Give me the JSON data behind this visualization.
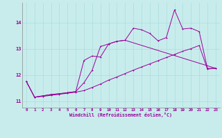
{
  "xlabel": "Windchill (Refroidissement éolien,°C)",
  "background_color": "#c8ecec",
  "line_color": "#990099",
  "xlim": [
    -0.5,
    23.5
  ],
  "ylim": [
    10.75,
    14.75
  ],
  "yticks": [
    11,
    12,
    13,
    14
  ],
  "xticks": [
    0,
    1,
    2,
    3,
    4,
    5,
    6,
    7,
    8,
    9,
    10,
    11,
    12,
    13,
    14,
    15,
    16,
    17,
    18,
    19,
    20,
    21,
    22,
    23
  ],
  "series1_x": [
    0,
    1,
    2,
    3,
    4,
    5,
    6,
    7,
    8,
    9,
    10,
    11,
    12,
    13,
    14,
    15,
    16,
    17,
    18,
    19,
    20,
    21,
    22,
    23
  ],
  "series1_y": [
    11.75,
    11.15,
    11.18,
    11.22,
    11.26,
    11.3,
    11.34,
    11.4,
    11.52,
    11.65,
    11.8,
    11.92,
    12.05,
    12.18,
    12.3,
    12.42,
    12.54,
    12.66,
    12.78,
    12.9,
    13.0,
    13.12,
    12.22,
    12.25
  ],
  "series2_x": [
    0,
    1,
    2,
    3,
    4,
    5,
    6,
    7,
    8,
    9,
    10,
    11,
    12,
    13,
    14,
    15,
    16,
    17,
    18,
    19,
    20,
    21,
    22,
    23
  ],
  "series2_y": [
    11.75,
    11.15,
    11.2,
    11.25,
    11.28,
    11.32,
    11.36,
    12.55,
    12.72,
    12.68,
    13.18,
    13.28,
    13.32,
    13.78,
    13.72,
    13.58,
    13.3,
    13.42,
    14.48,
    13.75,
    13.78,
    13.65,
    12.25,
    12.25
  ],
  "series3_x": [
    0,
    1,
    2,
    3,
    4,
    5,
    6,
    7,
    8,
    9,
    10,
    11,
    12,
    23
  ],
  "series3_y": [
    11.75,
    11.15,
    11.2,
    11.25,
    11.28,
    11.32,
    11.36,
    11.7,
    12.18,
    13.08,
    13.18,
    13.28,
    13.32,
    12.25
  ]
}
